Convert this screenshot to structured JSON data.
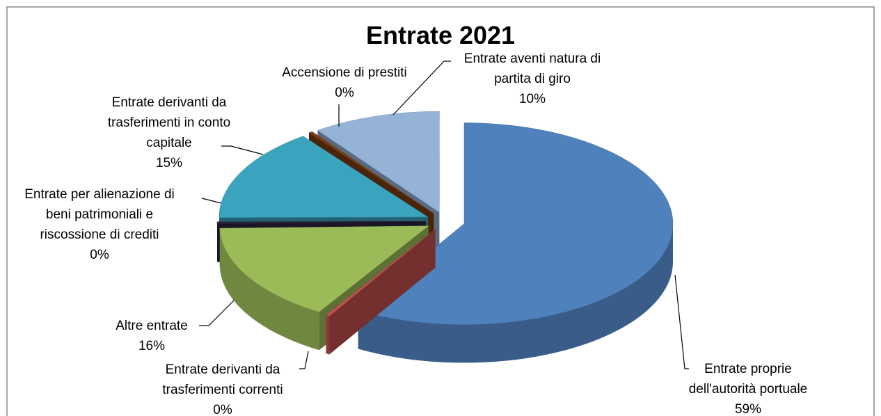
{
  "chart_data": {
    "type": "pie",
    "title": "Entrate 2021",
    "categories": [
      "Entrate proprie dell'autorità portuale",
      "Entrate derivanti da trasferimenti correnti",
      "Altre entrate",
      "Entrate per alienazione di beni patrimoniali e riscossione di crediti",
      "Entrate derivanti da trasferimenti in conto capitale",
      "Accensione di prestiti",
      "Entrate aventi natura di partita di giro"
    ],
    "values": [
      59,
      0.3,
      16,
      0.3,
      15,
      0.3,
      10
    ],
    "value_labels": [
      "59%",
      "0%",
      "16%",
      "0%",
      "15%",
      "0%",
      "10%"
    ],
    "colors": [
      "#4f81bd",
      "#c0504d",
      "#9bbb59",
      "#2b2440",
      "#3aa3bd",
      "#7a3e12",
      "#95b3d7"
    ]
  }
}
